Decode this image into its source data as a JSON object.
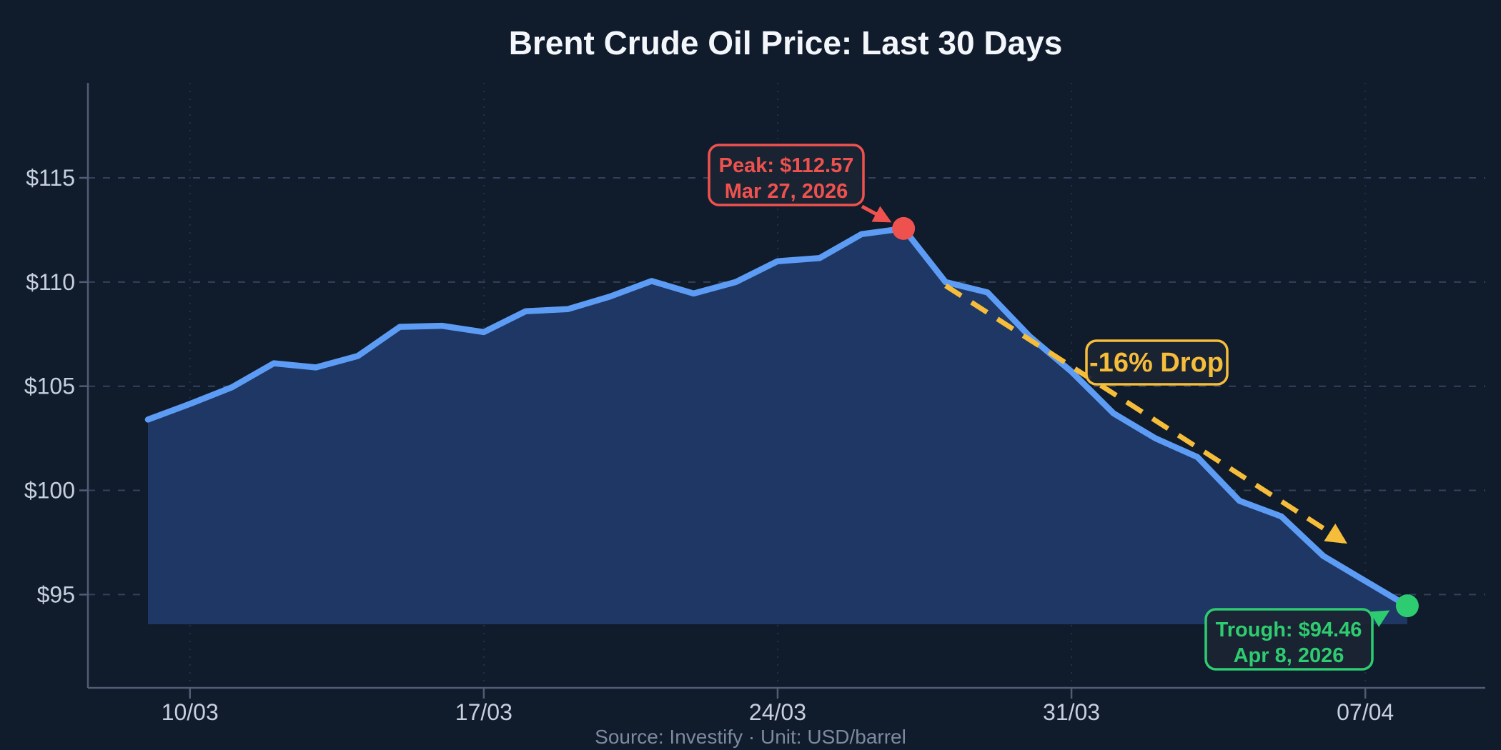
{
  "title": "Brent Crude Oil Price: Last 30 Days",
  "footer": "Source: Investify · Unit: USD/barrel",
  "colors": {
    "background": "#101b2c",
    "title": "#f3f6fa",
    "line": "#5d9cf4",
    "area_fill": "#1e3765",
    "grid_h": "#33425c",
    "grid_v": "#22324c",
    "spine": "#515d73",
    "tick_label": "#c6cfdc",
    "footer_text": "#7c8aa0",
    "peak_accent": "#ef524e",
    "drop_accent": "#f5bd3a",
    "trough_accent": "#2ecc70",
    "annotation_box_bg": "#1b2433"
  },
  "chart_data": {
    "type": "area",
    "title": "Brent Crude Oil Price: Last 30 Days",
    "xlabel": "",
    "ylabel": "",
    "unit": "USD/barrel",
    "source": "Investify",
    "grid": "horizontal-dashed, vertical-dotted at ticks",
    "legend": "none",
    "ylim": [
      90.5,
      119.5
    ],
    "dates": [
      "2026-03-09",
      "2026-03-10",
      "2026-03-11",
      "2026-03-12",
      "2026-03-13",
      "2026-03-14",
      "2026-03-15",
      "2026-03-16",
      "2026-03-17",
      "2026-03-18",
      "2026-03-19",
      "2026-03-20",
      "2026-03-21",
      "2026-03-22",
      "2026-03-23",
      "2026-03-24",
      "2026-03-25",
      "2026-03-26",
      "2026-03-27",
      "2026-03-28",
      "2026-03-29",
      "2026-03-30",
      "2026-03-31",
      "2026-04-01",
      "2026-04-02",
      "2026-04-03",
      "2026-04-04",
      "2026-04-05",
      "2026-04-06",
      "2026-04-07",
      "2026-04-08"
    ],
    "values": [
      103.4,
      104.15,
      104.95,
      106.1,
      105.9,
      106.45,
      107.85,
      107.9,
      107.6,
      108.6,
      108.7,
      109.3,
      110.05,
      109.45,
      110.0,
      111.0,
      111.15,
      112.3,
      112.57,
      110.0,
      109.5,
      107.4,
      105.7,
      103.7,
      102.5,
      101.6,
      99.5,
      98.75,
      96.85,
      95.65,
      94.46
    ],
    "yticks": {
      "values": [
        115,
        110,
        105,
        100,
        95
      ],
      "labels": [
        "$115",
        "$110",
        "$105",
        "$100",
        "$95"
      ]
    },
    "xticks": {
      "indices": [
        1,
        8,
        15,
        22,
        29
      ],
      "labels": [
        "10/03",
        "17/03",
        "24/03",
        "31/03",
        "07/04"
      ]
    },
    "annotations": {
      "peak": {
        "line1": "Peak: $112.57",
        "line2": "Mar 27, 2026",
        "index": 18,
        "value": 112.57
      },
      "trough": {
        "line1": "Trough: $94.46",
        "line2": "Apr 8, 2026",
        "index": 30,
        "value": 94.46
      },
      "drop": {
        "label": "-16% Drop",
        "percent": -16,
        "from_value": 112.57,
        "to_value": 94.46
      }
    }
  }
}
